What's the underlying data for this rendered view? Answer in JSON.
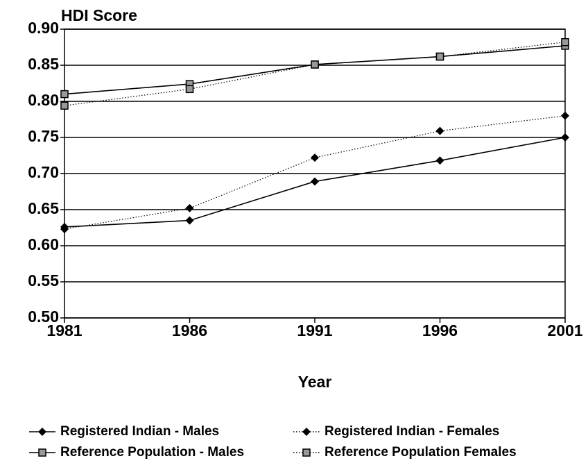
{
  "chart_data": {
    "type": "line",
    "y_label": "HDI Score",
    "x_label": "Year",
    "x": [
      1981,
      1986,
      1991,
      1996,
      2001
    ],
    "xlim": [
      1981,
      2001
    ],
    "xticks": [
      1981,
      1986,
      1991,
      1996,
      2001
    ],
    "ylim": [
      0.5,
      0.9
    ],
    "yticks": [
      {
        "value": 0.5,
        "label": "0.50"
      },
      0.55,
      {
        "value": 0.6,
        "label": "0.60"
      },
      0.65,
      {
        "value": 0.7,
        "label": "0.70"
      },
      0.75,
      {
        "value": 0.8,
        "label": "0.80"
      },
      0.85,
      {
        "value": 0.9,
        "label": "0.90"
      }
    ],
    "grid": true,
    "series": [
      {
        "name": "Registered Indian - Males",
        "color": "#000000",
        "dash": "solid",
        "marker": "diamond",
        "values": [
          0.626,
          0.635,
          0.689,
          0.718,
          0.75
        ]
      },
      {
        "name": "Registered Indian - Females",
        "color": "#000000",
        "dash": "dotted",
        "marker": "diamond",
        "values": [
          0.623,
          0.652,
          0.722,
          0.759,
          0.78
        ]
      },
      {
        "name": "Reference Population - Males",
        "color": "#000000",
        "dash": "solid",
        "marker": "square",
        "values": [
          0.81,
          0.824,
          0.851,
          0.862,
          0.877
        ]
      },
      {
        "name": "Reference Population Females",
        "color": "#000000",
        "dash": "dotted",
        "marker": "square",
        "values": [
          0.794,
          0.817,
          0.851,
          0.862,
          0.882
        ]
      }
    ]
  }
}
